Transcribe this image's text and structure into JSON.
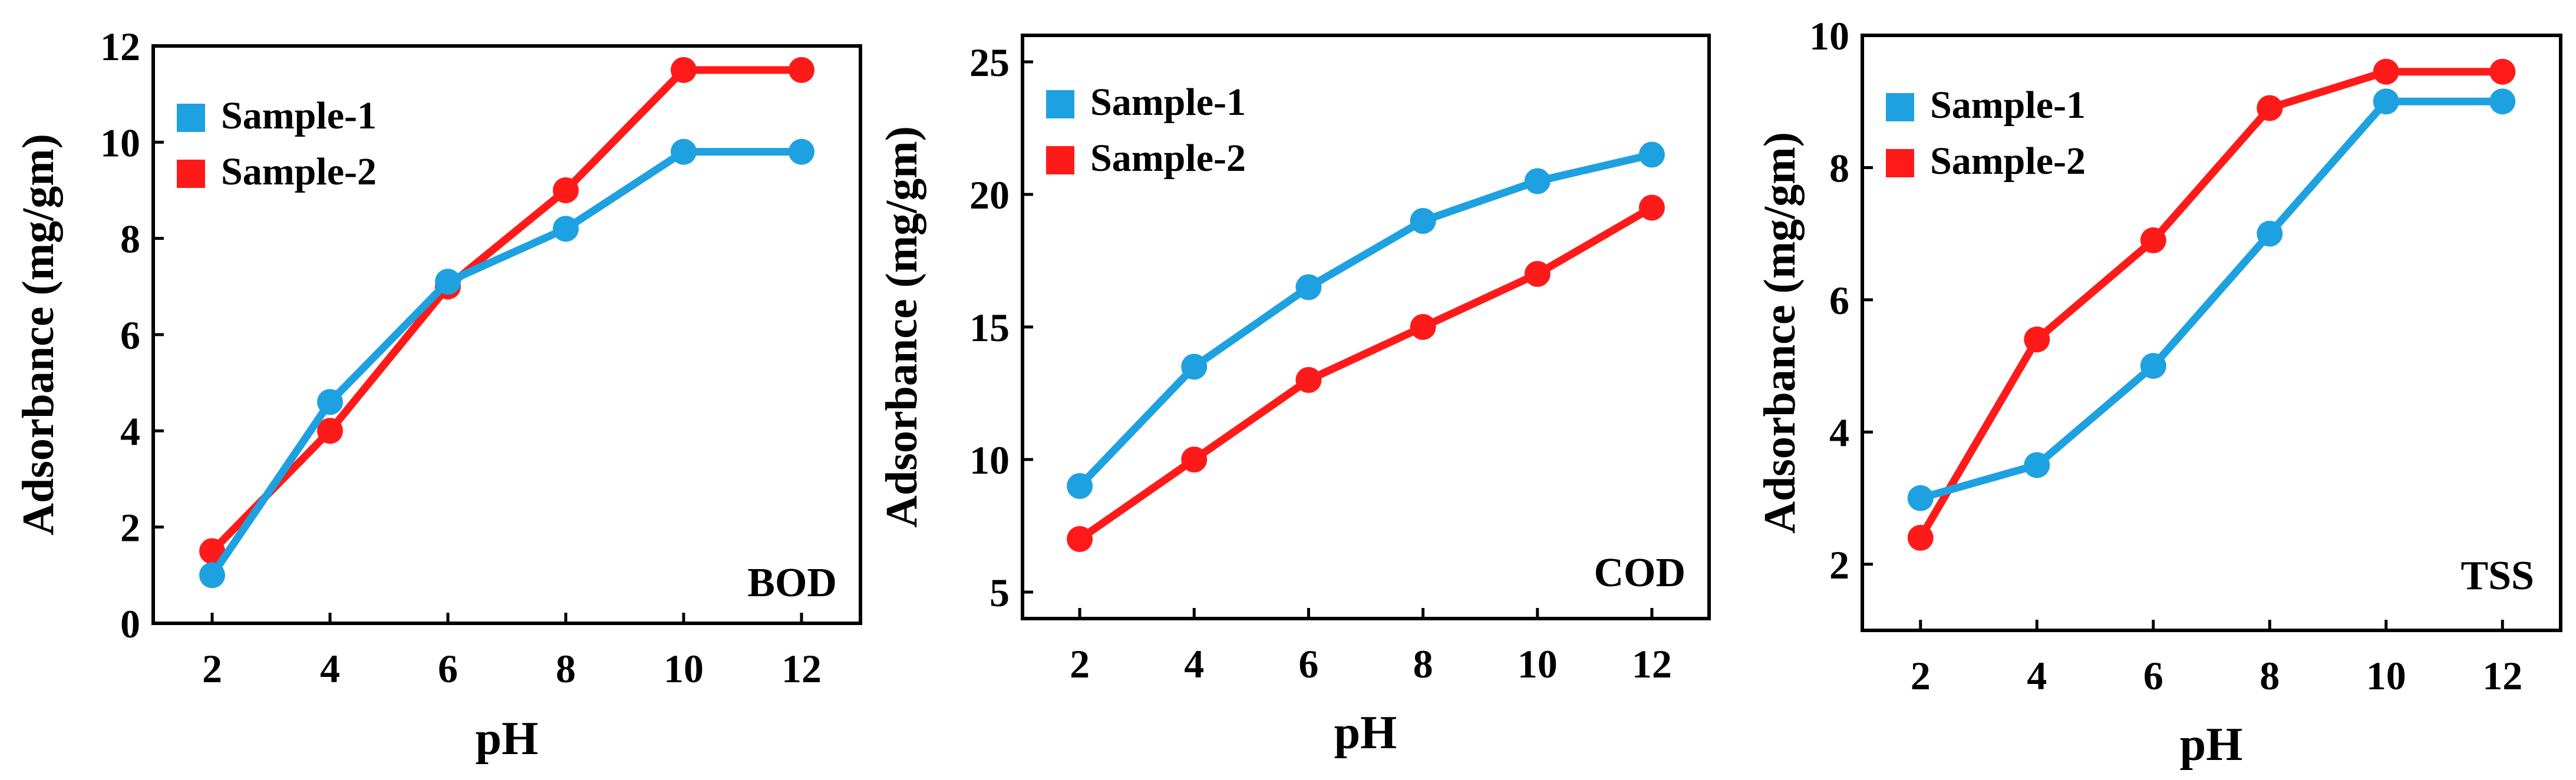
{
  "chart_data": [
    {
      "type": "line",
      "title": "",
      "panel_label": "BOD",
      "xlabel": "pH",
      "ylabel": "Adsorbance (mg/gm)",
      "x": [
        2,
        4,
        6,
        8,
        10,
        12
      ],
      "xticks": [
        "2",
        "4",
        "6",
        "8",
        "10",
        "12"
      ],
      "xlim": [
        1,
        13
      ],
      "ylim": [
        0,
        12
      ],
      "yticks": [
        0,
        2,
        4,
        6,
        8,
        10,
        12
      ],
      "legend_position": "top-left",
      "series": [
        {
          "name": "Sample-1",
          "color": "#1ea1e0",
          "values": [
            1.0,
            4.6,
            7.1,
            8.2,
            9.8,
            9.8
          ]
        },
        {
          "name": "Sample-2",
          "color": "#ff1a1a",
          "values": [
            1.5,
            4.0,
            7.0,
            9.0,
            11.5,
            11.5
          ]
        }
      ]
    },
    {
      "type": "line",
      "title": "",
      "panel_label": "COD",
      "xlabel": "pH",
      "ylabel": "Adsorbance (mg/gm)",
      "x": [
        2,
        4,
        6,
        8,
        10,
        12
      ],
      "xticks": [
        "2",
        "4",
        "6",
        "8",
        "10",
        "12"
      ],
      "xlim": [
        1,
        13
      ],
      "ylim": [
        4,
        26
      ],
      "yticks": [
        5,
        10,
        15,
        20,
        25
      ],
      "legend_position": "top-left",
      "series": [
        {
          "name": "Sample-1",
          "color": "#1ea1e0",
          "values": [
            9.0,
            13.5,
            16.5,
            19.0,
            20.5,
            21.5
          ]
        },
        {
          "name": "Sample-2",
          "color": "#ff1a1a",
          "values": [
            7.0,
            10.0,
            13.0,
            15.0,
            17.0,
            19.5
          ]
        }
      ]
    },
    {
      "type": "line",
      "title": "",
      "panel_label": "TSS",
      "xlabel": "pH",
      "ylabel": "Adsorbance (mg/gm)",
      "x": [
        2,
        4,
        6,
        8,
        10,
        12
      ],
      "xticks": [
        "2",
        "4",
        "6",
        "8",
        "10",
        "12"
      ],
      "xlim": [
        1,
        13
      ],
      "ylim": [
        1,
        10
      ],
      "yticks": [
        2,
        4,
        6,
        8,
        10
      ],
      "legend_position": "top-left",
      "series": [
        {
          "name": "Sample-1",
          "color": "#1ea1e0",
          "values": [
            3.0,
            3.5,
            5.0,
            7.0,
            9.0,
            9.0
          ]
        },
        {
          "name": "Sample-2",
          "color": "#ff1a1a",
          "values": [
            2.4,
            5.4,
            6.9,
            8.9,
            9.45,
            9.45
          ]
        }
      ]
    }
  ]
}
